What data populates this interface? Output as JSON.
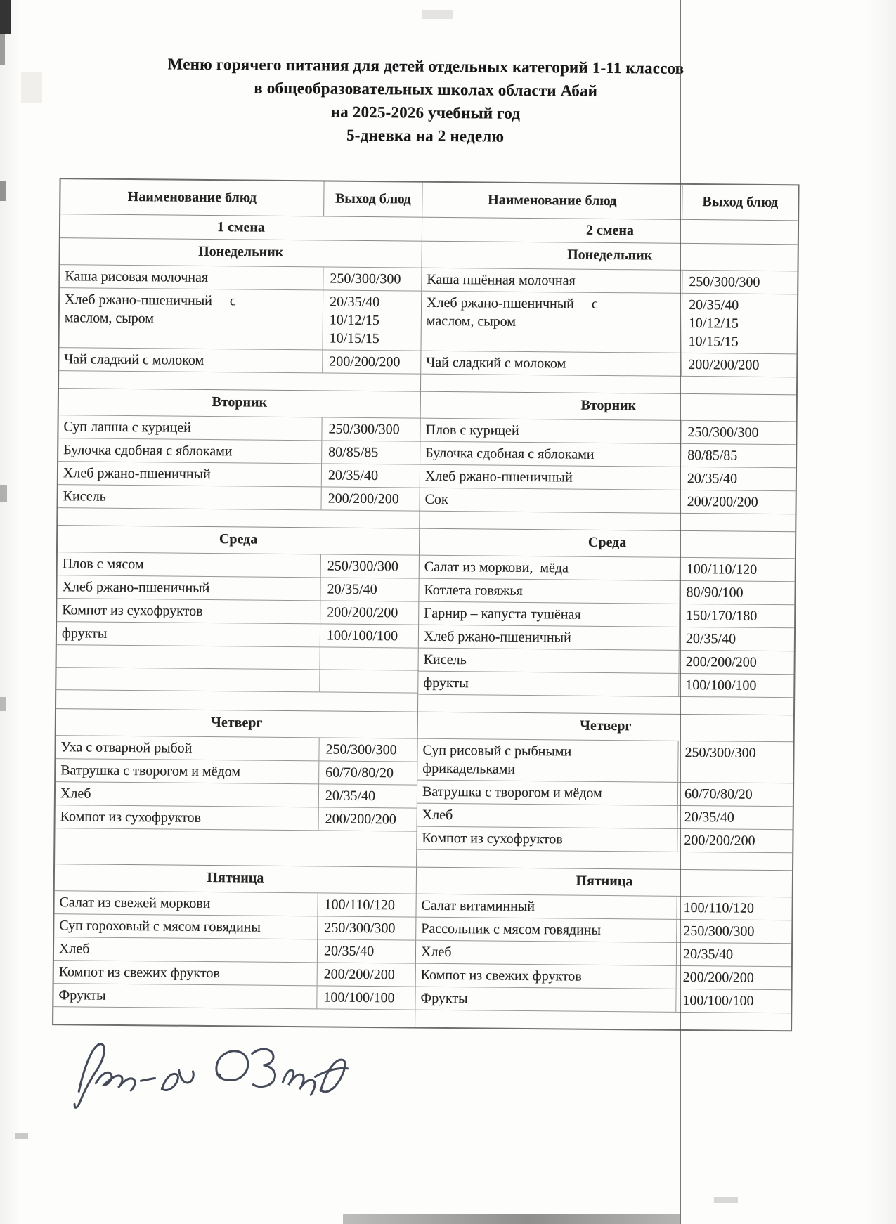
{
  "page": {
    "title_lines": [
      "Меню горячего питания для детей отдельных категорий  1-11 классов",
      "в общеобразовательных школах области Абай",
      "на 2025-2026 учебный год",
      "5-дневка на 2 неделю"
    ]
  },
  "menu_table": {
    "column_headers": [
      "Наименование блюд",
      "Выход блюд",
      "Наименование блюд",
      "Выход блюд"
    ],
    "shifts": {
      "first": "1 смена",
      "second": "2 смена"
    },
    "days": [
      {
        "id": "monday",
        "left": {
          "day_label": "Понедельник",
          "items": [
            {
              "name": "Каша рисовая молочная",
              "output": "250/300/300"
            },
            {
              "name": "Хлеб ржано-пшеничный     с\nмаслом, сыром",
              "output": "20/35/40\n10/12/15\n10/15/15"
            },
            {
              "name": "Чай сладкий с молоком",
              "output": "200/200/200"
            }
          ]
        },
        "right": {
          "day_label": "Понедельник",
          "items": [
            {
              "name": "Каша пшённая молочная",
              "output": "250/300/300"
            },
            {
              "name": "Хлеб ржано-пшеничный     с\nмаслом, сыром",
              "output": "20/35/40\n10/12/15\n10/15/15"
            },
            {
              "name": "Чай сладкий с молоком",
              "output": "200/200/200"
            }
          ]
        }
      },
      {
        "id": "tuesday",
        "left": {
          "day_label": "Вторник",
          "items": [
            {
              "name": "Суп лапша с курицей",
              "output": "250/300/300"
            },
            {
              "name": "Булочка сдобная с яблоками",
              "output": "80/85/85"
            },
            {
              "name": "Хлеб ржано-пшеничный",
              "output": "20/35/40"
            },
            {
              "name": "Кисель",
              "output": "200/200/200"
            }
          ]
        },
        "right": {
          "day_label": "Вторник",
          "items": [
            {
              "name": "Плов с курицей",
              "output": "250/300/300"
            },
            {
              "name": "Булочка сдобная с яблоками",
              "output": "80/85/85"
            },
            {
              "name": "Хлеб ржано-пшеничный",
              "output": "20/35/40"
            },
            {
              "name": "Сок",
              "output": "200/200/200"
            }
          ]
        }
      },
      {
        "id": "wednesday",
        "left": {
          "day_label": "Среда",
          "items": [
            {
              "name": "Плов с мясом",
              "output": "250/300/300"
            },
            {
              "name": "Хлеб ржано-пшеничный",
              "output": "20/35/40"
            },
            {
              "name": "Компот из сухофруктов",
              "output": "200/200/200"
            },
            {
              "name": "фрукты",
              "output": "100/100/100"
            },
            {
              "name": "",
              "output": ""
            },
            {
              "name": "",
              "output": ""
            }
          ]
        },
        "right": {
          "day_label": "Среда",
          "items": [
            {
              "name": "Салат из моркови,  мёда",
              "output": "100/110/120"
            },
            {
              "name": "Котлета говяжья",
              "output": "80/90/100"
            },
            {
              "name": "Гарнир – капуста тушёная",
              "output": "150/170/180"
            },
            {
              "name": "Хлеб ржано-пшеничный",
              "output": "20/35/40"
            },
            {
              "name": "Кисель",
              "output": "200/200/200"
            },
            {
              "name": "фрукты",
              "output": "100/100/100"
            }
          ]
        }
      },
      {
        "id": "thursday",
        "left": {
          "day_label": "Четверг",
          "items": [
            {
              "name": "Уха с отварной рыбой",
              "output": "250/300/300"
            },
            {
              "name": "Ватрушка с творогом и мёдом",
              "output": "60/70/80/20"
            },
            {
              "name": "Хлеб",
              "output": "20/35/40"
            },
            {
              "name": "Компот из сухофруктов",
              "output": "200/200/200"
            }
          ]
        },
        "right": {
          "day_label": "Четверг",
          "items": [
            {
              "name": "Суп рисовый с рыбными\nфрикадельками",
              "output": "250/300/300"
            },
            {
              "name": "Ватрушка с творогом и мёдом",
              "output": "60/70/80/20"
            },
            {
              "name": "Хлеб",
              "output": "20/35/40"
            },
            {
              "name": "Компот из сухофруктов",
              "output": "200/200/200"
            }
          ]
        }
      },
      {
        "id": "friday",
        "left": {
          "day_label": "Пятница",
          "items": [
            {
              "name": "Салат из свежей моркови",
              "output": "100/110/120"
            },
            {
              "name": "Суп гороховый с мясом говядины",
              "output": "250/300/300"
            },
            {
              "name": "Хлеб",
              "output": "20/35/40"
            },
            {
              "name": "Компот из свежих фруктов",
              "output": "200/200/200"
            },
            {
              "name": "Фрукты",
              "output": "100/100/100"
            }
          ]
        },
        "right": {
          "day_label": "Пятница",
          "items": [
            {
              "name": "Салат витаминный",
              "output": "100/110/120"
            },
            {
              "name": "Рассольник с мясом говядины",
              "output": "250/300/300"
            },
            {
              "name": "Хлеб",
              "output": "20/35/40"
            },
            {
              "name": "Компот из свежих фруктов",
              "output": "200/200/200"
            },
            {
              "name": "Фрукты",
              "output": "100/100/100"
            }
          ]
        }
      }
    ]
  },
  "signature": {
    "legible_text": "рук-ль"
  }
}
